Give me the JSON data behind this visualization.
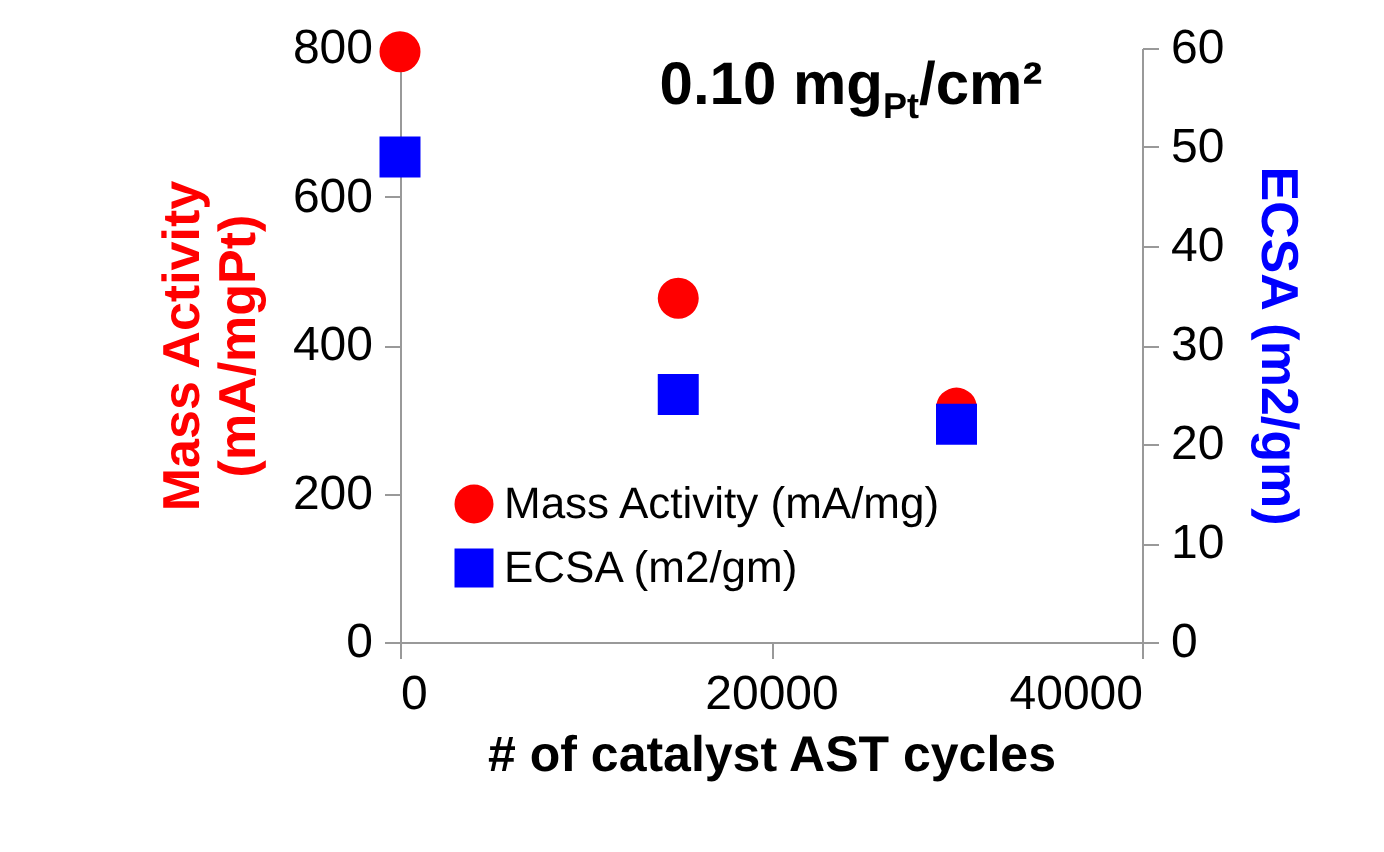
{
  "chart_data": {
    "type": "scatter",
    "title": "0.10 mg$_{Pt}$/cm²",
    "xlabel": "# of catalyst AST cycles",
    "ylabel": [
      "Mass Activity",
      "(mA/mgPt)"
    ],
    "y2label": "ECSA (m2/gm)",
    "x": [
      0,
      15000,
      30000
    ],
    "series": [
      {
        "name": "Mass Activity (mA/mg)",
        "color": "#ff0000",
        "marker": "circle",
        "values": [
          795,
          463,
          315
        ]
      },
      {
        "name": "ECSA (m2/gm)",
        "color": "#0000ff",
        "marker": "square",
        "axis": "y2",
        "values": [
          49,
          25,
          22
        ]
      }
    ],
    "xlim": [
      0,
      40000
    ],
    "xticks": [
      0,
      20000,
      40000
    ],
    "ylim": [
      0,
      800
    ],
    "yticks": [
      0,
      200,
      400,
      600,
      800
    ],
    "y2lim": [
      0,
      60
    ],
    "y2ticks": [
      0,
      10,
      20,
      30,
      40,
      50,
      60
    ],
    "grid": false,
    "legend": "bottom left"
  }
}
